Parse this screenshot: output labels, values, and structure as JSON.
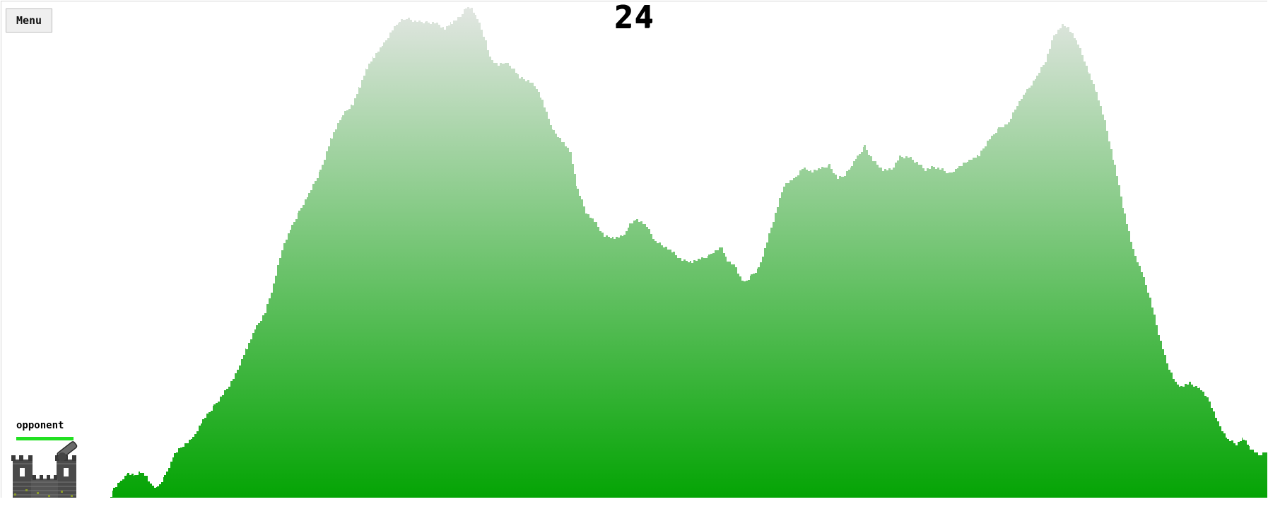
{
  "menu": {
    "label": "Menu"
  },
  "hud": {
    "turn_counter": "24"
  },
  "player": {
    "name": "opponent",
    "health_fraction": 1.0,
    "health_color": "#22e022"
  },
  "terrain": {
    "top_color": "#e2e6e2",
    "bottom_color": "#04a404"
  },
  "icons": {
    "castle": "castle-icon",
    "cannon": "cannon-icon"
  }
}
